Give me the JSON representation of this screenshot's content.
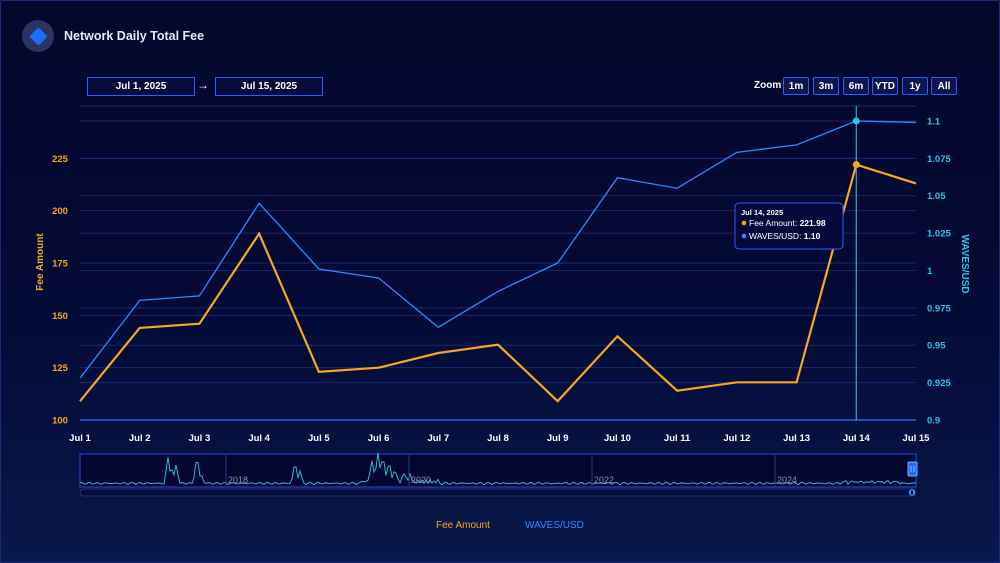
{
  "header": {
    "title": "Network Daily Total Fee",
    "logo_icon": "waves-diamond-icon"
  },
  "range": {
    "from": "Jul 1, 2025",
    "to": "Jul 15, 2025",
    "arrow": "→"
  },
  "zoom": {
    "label": "Zoom",
    "buttons": [
      "1m",
      "3m",
      "6m",
      "YTD",
      "1y",
      "All"
    ]
  },
  "tooltip": {
    "date": "Jul 14, 2025",
    "fee_label": "Fee Amount",
    "fee_value": "221.98",
    "price_label": "WAVES/USD",
    "price_value": "1.10"
  },
  "navigator": {
    "years": [
      "2018",
      "2020",
      "2022",
      "2024"
    ],
    "handle_label": "0"
  },
  "colors": {
    "fee": "#f5a623",
    "price": "#2a8cff",
    "cursor": "#20b0c8"
  },
  "chart_data": {
    "type": "line",
    "categories": [
      "Jul 1",
      "Jul 2",
      "Jul 3",
      "Jul 4",
      "Jul 5",
      "Jul 6",
      "Jul 7",
      "Jul 8",
      "Jul 9",
      "Jul 10",
      "Jul 11",
      "Jul 12",
      "Jul 13",
      "Jul 14",
      "Jul 15"
    ],
    "series": [
      {
        "name": "Fee Amount",
        "axis": "left",
        "values": [
          109,
          144,
          146,
          189,
          123,
          125,
          132,
          136,
          109,
          140,
          114,
          118,
          118,
          221.98,
          213
        ]
      },
      {
        "name": "WAVES/USD",
        "axis": "right",
        "values": [
          0.928,
          0.98,
          0.983,
          1.045,
          1.001,
          0.995,
          0.962,
          0.986,
          1.005,
          1.062,
          1.055,
          1.079,
          1.084,
          1.1,
          1.099
        ]
      }
    ],
    "ylabel": "Fee Amount",
    "y2label": "WAVES/USD",
    "ylim": [
      100,
      250
    ],
    "y2lim": [
      0.9,
      1.11
    ],
    "yticks": [
      "100",
      "125",
      "150",
      "175",
      "200",
      "225"
    ],
    "y2ticks": [
      "0.9",
      "0.925",
      "0.95",
      "0.975",
      "1",
      "1.025",
      "1.05",
      "1.075",
      "1.1"
    ],
    "highlight_category": "Jul 14",
    "grid": true,
    "legend_position": "bottom-center"
  }
}
